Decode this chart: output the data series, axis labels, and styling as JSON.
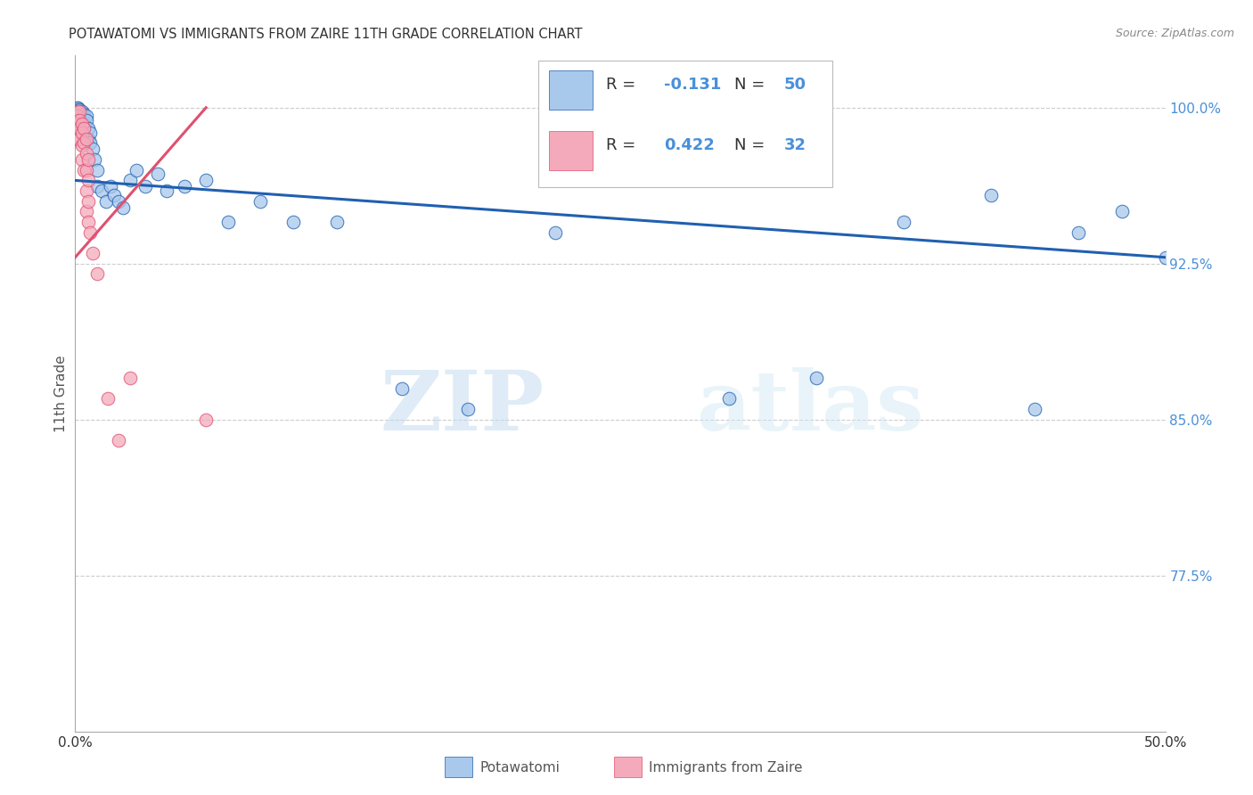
{
  "title": "POTAWATOMI VS IMMIGRANTS FROM ZAIRE 11TH GRADE CORRELATION CHART",
  "source": "Source: ZipAtlas.com",
  "xlabel_blue": "Potawatomi",
  "xlabel_pink": "Immigrants from Zaire",
  "ylabel": "11th Grade",
  "xlim": [
    0.0,
    0.5
  ],
  "ylim": [
    0.7,
    1.025
  ],
  "xticks": [
    0.0,
    0.1,
    0.2,
    0.3,
    0.4,
    0.5
  ],
  "xtick_labels": [
    "0.0%",
    "",
    "",
    "",
    "",
    "50.0%"
  ],
  "ytick_labels_right": [
    "77.5%",
    "85.0%",
    "92.5%",
    "100.0%"
  ],
  "ytick_vals_right": [
    0.775,
    0.85,
    0.925,
    1.0
  ],
  "R_blue": -0.131,
  "N_blue": 50,
  "R_pink": 0.422,
  "N_pink": 32,
  "blue_color": "#A8C8EC",
  "pink_color": "#F4AABB",
  "blue_line_color": "#2060B0",
  "pink_line_color": "#E05070",
  "blue_points_x": [
    0.001,
    0.001,
    0.001,
    0.002,
    0.002,
    0.002,
    0.003,
    0.003,
    0.003,
    0.004,
    0.004,
    0.005,
    0.005,
    0.006,
    0.006,
    0.007,
    0.007,
    0.008,
    0.009,
    0.01,
    0.01,
    0.012,
    0.014,
    0.016,
    0.018,
    0.02,
    0.022,
    0.025,
    0.028,
    0.032,
    0.038,
    0.042,
    0.05,
    0.06,
    0.07,
    0.085,
    0.1,
    0.12,
    0.15,
    0.18,
    0.22,
    0.26,
    0.3,
    0.34,
    0.38,
    0.42,
    0.44,
    0.46,
    0.48,
    0.5
  ],
  "blue_points_y": [
    1.0,
    1.0,
    0.999,
    0.999,
    0.998,
    0.997,
    0.998,
    0.996,
    0.994,
    0.997,
    0.993,
    0.996,
    0.994,
    0.99,
    0.985,
    0.988,
    0.983,
    0.98,
    0.975,
    0.97,
    0.962,
    0.96,
    0.955,
    0.962,
    0.958,
    0.955,
    0.952,
    0.965,
    0.97,
    0.962,
    0.968,
    0.96,
    0.962,
    0.965,
    0.945,
    0.955,
    0.945,
    0.945,
    0.865,
    0.855,
    0.94,
    0.965,
    0.86,
    0.87,
    0.945,
    0.958,
    0.855,
    0.94,
    0.95,
    0.928
  ],
  "pink_points_x": [
    0.001,
    0.001,
    0.001,
    0.001,
    0.001,
    0.002,
    0.002,
    0.002,
    0.002,
    0.003,
    0.003,
    0.003,
    0.003,
    0.004,
    0.004,
    0.004,
    0.005,
    0.005,
    0.005,
    0.005,
    0.005,
    0.006,
    0.006,
    0.006,
    0.006,
    0.007,
    0.008,
    0.01,
    0.015,
    0.02,
    0.025,
    0.06
  ],
  "pink_points_y": [
    0.998,
    0.996,
    0.994,
    0.992,
    0.985,
    0.998,
    0.994,
    0.99,
    0.985,
    0.992,
    0.988,
    0.982,
    0.975,
    0.99,
    0.983,
    0.97,
    0.985,
    0.978,
    0.97,
    0.96,
    0.95,
    0.975,
    0.965,
    0.955,
    0.945,
    0.94,
    0.93,
    0.92,
    0.86,
    0.84,
    0.87,
    0.85
  ],
  "blue_trend_x": [
    0.0,
    0.5
  ],
  "blue_trend_y": [
    0.965,
    0.928
  ],
  "pink_trend_x": [
    0.0,
    0.06
  ],
  "pink_trend_y": [
    0.928,
    1.0
  ],
  "watermark_zip": "ZIP",
  "watermark_atlas": "atlas",
  "background_color": "#FFFFFF",
  "grid_color": "#CCCCCC",
  "title_color": "#333333",
  "axis_label_color": "#555555",
  "right_axis_label_color": "#4A90D9",
  "legend_R_color": "#4A90D9",
  "legend_text_color": "#333333"
}
